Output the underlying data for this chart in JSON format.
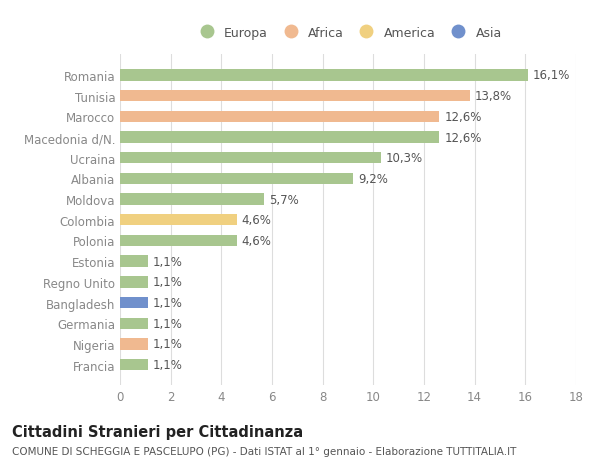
{
  "countries": [
    "Francia",
    "Nigeria",
    "Germania",
    "Bangladesh",
    "Regno Unito",
    "Estonia",
    "Polonia",
    "Colombia",
    "Moldova",
    "Albania",
    "Ucraina",
    "Macedonia d/N.",
    "Marocco",
    "Tunisia",
    "Romania"
  ],
  "values": [
    1.1,
    1.1,
    1.1,
    1.1,
    1.1,
    1.1,
    4.6,
    4.6,
    5.7,
    9.2,
    10.3,
    12.6,
    12.6,
    13.8,
    16.1
  ],
  "labels": [
    "1,1%",
    "1,1%",
    "1,1%",
    "1,1%",
    "1,1%",
    "1,1%",
    "4,6%",
    "4,6%",
    "5,7%",
    "9,2%",
    "10,3%",
    "12,6%",
    "12,6%",
    "13,8%",
    "16,1%"
  ],
  "continent": [
    "Europa",
    "Africa",
    "Europa",
    "Asia",
    "Europa",
    "Europa",
    "Europa",
    "America",
    "Europa",
    "Europa",
    "Europa",
    "Europa",
    "Africa",
    "Africa",
    "Europa"
  ],
  "colors": {
    "Europa": "#a8c68f",
    "Africa": "#f0b990",
    "America": "#f0d080",
    "Asia": "#7090cc"
  },
  "legend_order": [
    "Europa",
    "Africa",
    "America",
    "Asia"
  ],
  "title": "Cittadini Stranieri per Cittadinanza",
  "subtitle": "COMUNE DI SCHEGGIA E PASCELUPO (PG) - Dati ISTAT al 1° gennaio - Elaborazione TUTTITALIA.IT",
  "xlim": [
    0,
    18
  ],
  "xticks": [
    0,
    2,
    4,
    6,
    8,
    10,
    12,
    14,
    16,
    18
  ],
  "background_color": "#ffffff",
  "grid_color": "#dddddd",
  "bar_height": 0.55,
  "label_fontsize": 8.5,
  "tick_fontsize": 8.5,
  "title_fontsize": 10.5,
  "subtitle_fontsize": 7.5
}
